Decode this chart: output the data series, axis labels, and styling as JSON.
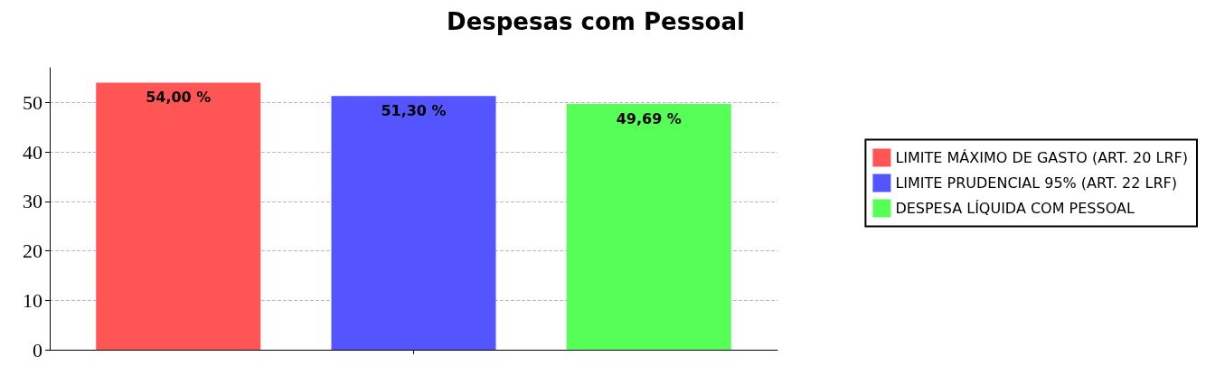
{
  "chart_data": {
    "type": "bar",
    "title": "Despesas com Pessoal",
    "categories": [
      null
    ],
    "series": [
      {
        "name": "LIMITE MÁXIMO DE GASTO (ART. 20 LRF)",
        "color": "#ff5555",
        "values": [
          54.0
        ],
        "value_labels": [
          "54,00 %"
        ]
      },
      {
        "name": "LIMITE PRUDENCIAL 95% (ART. 22 LRF)",
        "color": "#5555ff",
        "values": [
          51.3
        ],
        "value_labels": [
          "51,30 %"
        ]
      },
      {
        "name": "DESPESA LÍQUIDA COM PESSOAL",
        "color": "#55ff55",
        "values": [
          49.69
        ],
        "value_labels": [
          "49,69 %"
        ]
      }
    ],
    "ylim": [
      0,
      57
    ],
    "yticks": [
      0,
      10,
      20,
      30,
      40,
      50
    ],
    "grid": "y",
    "legend": "right"
  }
}
